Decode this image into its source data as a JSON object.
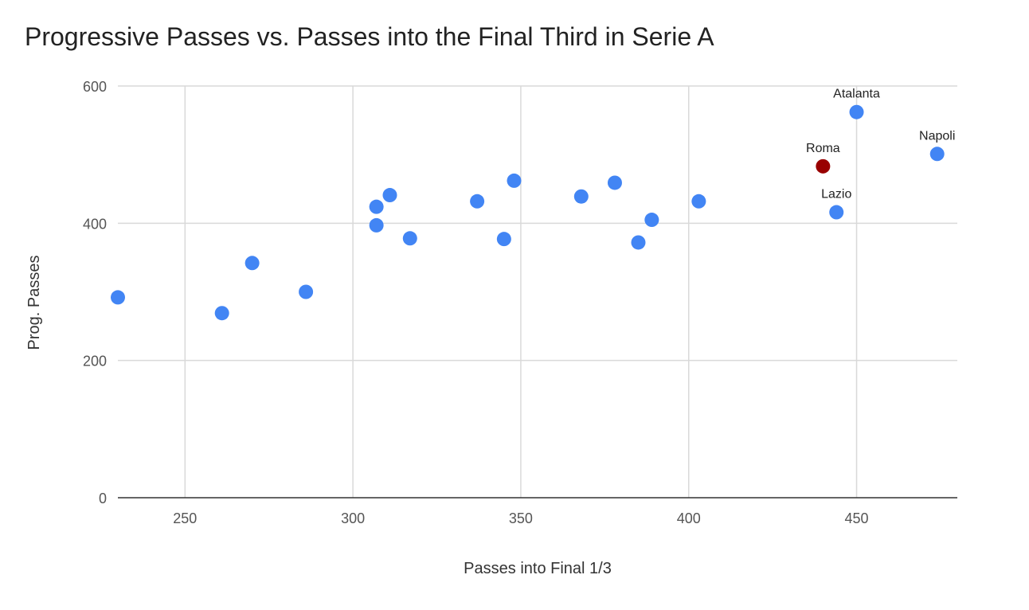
{
  "chart_data": {
    "type": "scatter",
    "title": "Progressive Passes vs. Passes into the Final Third in Serie A",
    "xlabel": "Passes into Final 1/3",
    "ylabel": "Prog. Passes",
    "xlim": [
      230,
      480
    ],
    "ylim": [
      0,
      600
    ],
    "x_ticks": [
      250,
      300,
      350,
      400,
      450
    ],
    "y_ticks": [
      0,
      200,
      400,
      600
    ],
    "grid": true,
    "colors": {
      "default": "#4285f4",
      "highlight": "#990000"
    },
    "points": [
      {
        "x": 230,
        "y": 292
      },
      {
        "x": 261,
        "y": 269
      },
      {
        "x": 270,
        "y": 342
      },
      {
        "x": 286,
        "y": 300
      },
      {
        "x": 307,
        "y": 424
      },
      {
        "x": 307,
        "y": 397
      },
      {
        "x": 311,
        "y": 441
      },
      {
        "x": 317,
        "y": 378
      },
      {
        "x": 337,
        "y": 432
      },
      {
        "x": 345,
        "y": 377
      },
      {
        "x": 348,
        "y": 462
      },
      {
        "x": 368,
        "y": 439
      },
      {
        "x": 378,
        "y": 459
      },
      {
        "x": 385,
        "y": 372
      },
      {
        "x": 389,
        "y": 405
      },
      {
        "x": 403,
        "y": 432
      },
      {
        "x": 440,
        "y": 483,
        "label": "Roma",
        "highlight": true
      },
      {
        "x": 444,
        "y": 416,
        "label": "Lazio"
      },
      {
        "x": 450,
        "y": 562,
        "label": "Atalanta"
      },
      {
        "x": 474,
        "y": 501,
        "label": "Napoli"
      }
    ]
  }
}
